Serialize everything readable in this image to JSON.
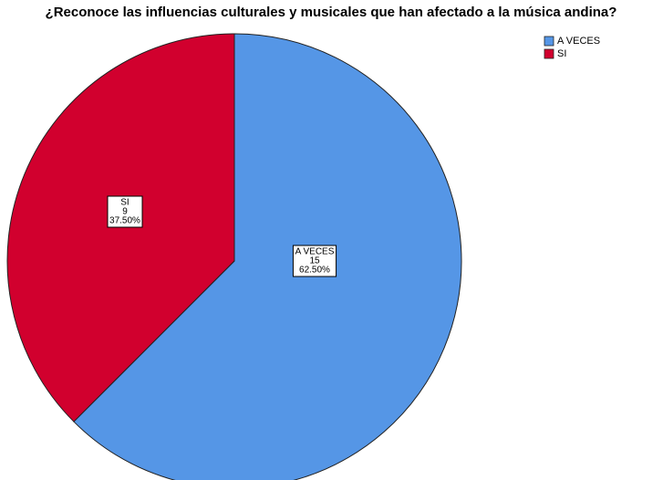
{
  "chart_data": {
    "type": "pie",
    "title": "¿Reconoce las influencias culturales y musicales que han afectado a la música andina?",
    "categories": [
      "A VECES",
      "SI"
    ],
    "values": [
      15,
      9
    ],
    "percent_labels": [
      "62.50%",
      "37.50%"
    ],
    "colors": [
      "#5596e6",
      "#d1002e"
    ],
    "legend": "top-right"
  }
}
